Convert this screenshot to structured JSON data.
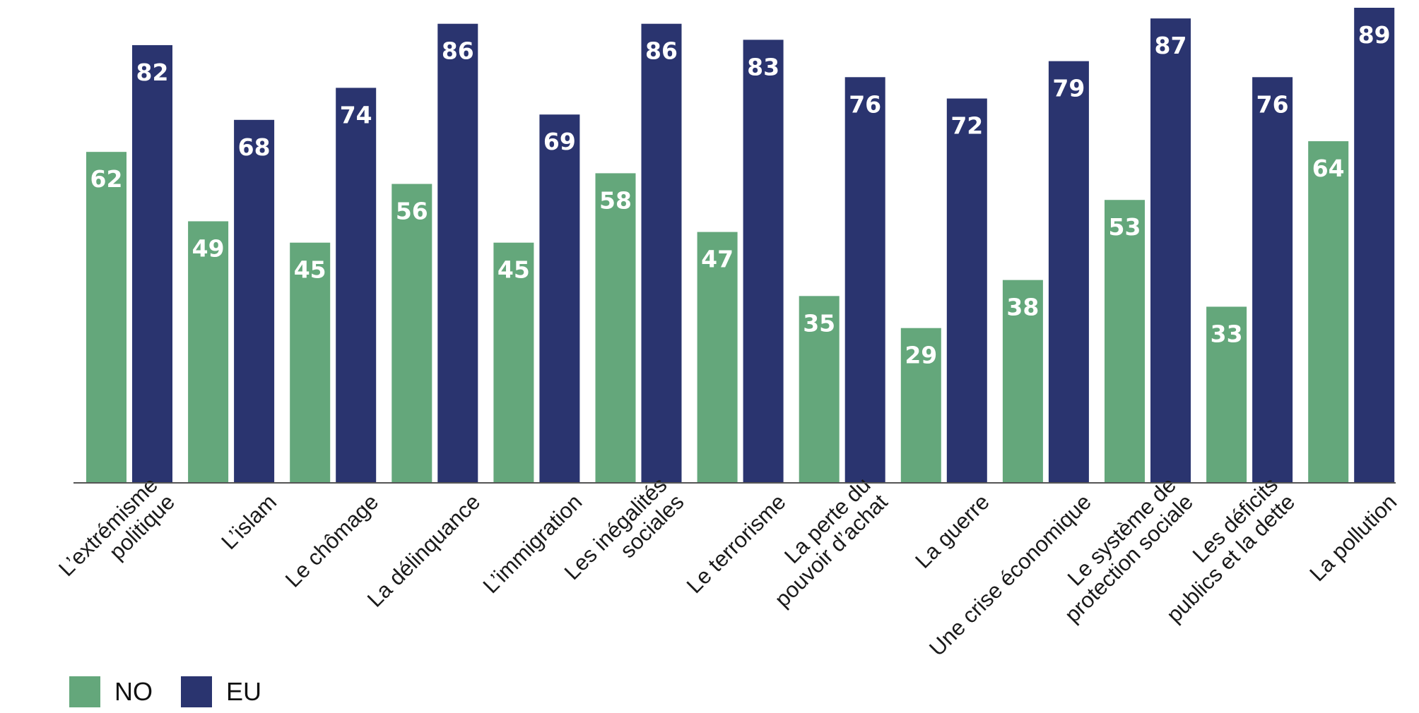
{
  "chart_data": {
    "type": "bar",
    "categories": [
      [
        "L’extrémisme",
        "politique"
      ],
      [
        "L’islam"
      ],
      [
        "Le chômage"
      ],
      [
        "La délinquance"
      ],
      [
        "L’immigration"
      ],
      [
        "Les inégalités",
        "sociales"
      ],
      [
        "Le terrorisme"
      ],
      [
        "La perte du",
        "pouvoir d’achat"
      ],
      [
        "La guerre"
      ],
      [
        "Une crise économique"
      ],
      [
        "Le système de",
        "protection sociale"
      ],
      [
        "Les déficits",
        "publics et la dette"
      ],
      [
        "La pollution"
      ]
    ],
    "series": [
      {
        "name": "NO",
        "color": "#64a77b",
        "values": [
          62,
          49,
          45,
          56,
          45,
          58,
          47,
          35,
          29,
          38,
          53,
          33,
          64
        ]
      },
      {
        "name": "EU",
        "color": "#2a346f",
        "values": [
          82,
          68,
          74,
          86,
          69,
          86,
          83,
          76,
          72,
          79,
          87,
          76,
          89
        ]
      }
    ],
    "ylim": [
      0,
      89
    ],
    "grid": false,
    "legend_position": "bottom-left"
  }
}
